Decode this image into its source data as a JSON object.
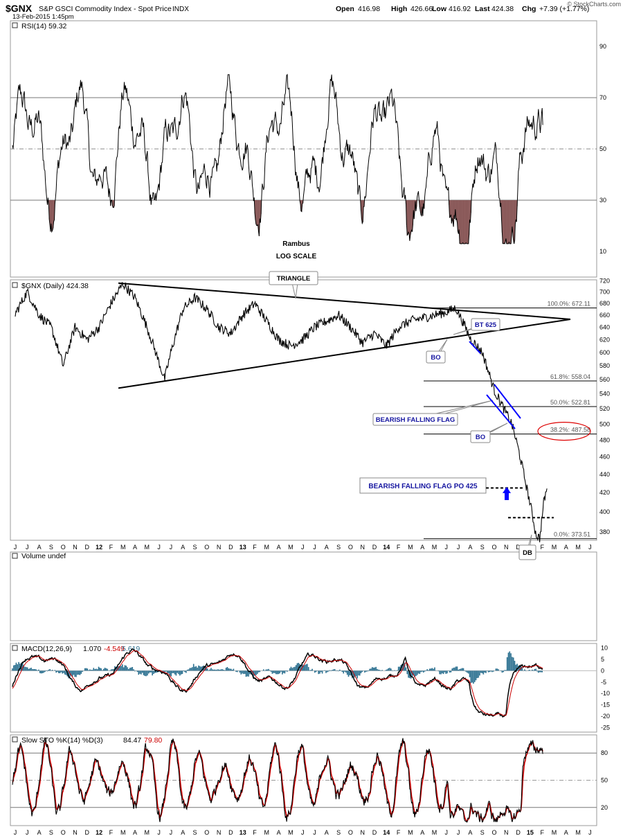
{
  "header": {
    "symbol": "$GNX",
    "name": "S&P GSCI Commodity Index - Spot Price",
    "exchange": "INDX",
    "datetime": "13-Feb-2015 1:45pm",
    "open_label": "Open",
    "open": "416.98",
    "high_label": "High",
    "high": "426.66",
    "low_label": "Low",
    "low": "416.92",
    "last_label": "Last",
    "last": "424.38",
    "chg_label": "Chg",
    "chg": "+7.39 (+1.77%)",
    "watermark": "© StockCharts.com"
  },
  "chart_data": [
    {
      "id": "rsi",
      "type": "line",
      "label": "RSI(14) 59.32",
      "ylim": [
        0,
        100
      ],
      "yticks": [
        10,
        30,
        50,
        70,
        90
      ],
      "reference_lines": [
        30,
        50,
        70
      ],
      "oversold_fill_color": "#8b5a5a",
      "line_color": "#000000",
      "annotations": [
        "Rambus",
        "LOG SCALE"
      ]
    },
    {
      "id": "price",
      "type": "line",
      "label": "$GNX (Daily) 424.38",
      "scale": "log",
      "ylim": [
        372,
        722
      ],
      "yticks": [
        380,
        400,
        420,
        440,
        460,
        480,
        500,
        520,
        540,
        560,
        580,
        600,
        620,
        640,
        660,
        680,
        700,
        720
      ],
      "fib_levels": [
        {
          "label": "100.0%: 672.11",
          "value": 672.11
        },
        {
          "label": "61.8%: 558.04",
          "value": 558.04
        },
        {
          "label": "50.0%: 522.81",
          "value": 522.81
        },
        {
          "label": "38.2%: 487.58",
          "value": 487.58,
          "highlight": true
        },
        {
          "label": "0.0%: 373.51",
          "value": 373.51
        }
      ],
      "annotations": {
        "triangle": "TRIANGLE",
        "bt": "BT 625",
        "bo1": "BO",
        "flag": "BEARISH FALLING FLAG",
        "bo2": "BO",
        "po": "BEARISH FALLING FLAG PO 425",
        "db": "DB"
      },
      "trend_colors": {
        "triangle": "#000000",
        "flag": "#0000ff",
        "label_text": "#1515a0"
      },
      "approx_path": [
        [
          "2011-06-01",
          662
        ],
        [
          "2011-07-01",
          700
        ],
        [
          "2011-08-01",
          660
        ],
        [
          "2011-09-01",
          640
        ],
        [
          "2011-10-01",
          580
        ],
        [
          "2011-11-01",
          640
        ],
        [
          "2011-12-01",
          620
        ],
        [
          "2012-01-01",
          640
        ],
        [
          "2012-02-01",
          680
        ],
        [
          "2012-03-01",
          715
        ],
        [
          "2012-04-01",
          690
        ],
        [
          "2012-05-01",
          640
        ],
        [
          "2012-06-15",
          560
        ],
        [
          "2012-07-01",
          600
        ],
        [
          "2012-08-01",
          670
        ],
        [
          "2012-09-01",
          690
        ],
        [
          "2012-10-01",
          670
        ],
        [
          "2012-11-01",
          640
        ],
        [
          "2012-12-01",
          630
        ],
        [
          "2013-01-01",
          660
        ],
        [
          "2013-02-01",
          680
        ],
        [
          "2013-03-01",
          650
        ],
        [
          "2013-04-01",
          620
        ],
        [
          "2013-05-01",
          610
        ],
        [
          "2013-06-01",
          620
        ],
        [
          "2013-07-01",
          640
        ],
        [
          "2013-08-01",
          650
        ],
        [
          "2013-09-01",
          660
        ],
        [
          "2013-10-01",
          640
        ],
        [
          "2013-11-01",
          615
        ],
        [
          "2013-12-01",
          630
        ],
        [
          "2014-01-01",
          610
        ],
        [
          "2014-02-01",
          640
        ],
        [
          "2014-03-01",
          650
        ],
        [
          "2014-04-01",
          655
        ],
        [
          "2014-05-01",
          660
        ],
        [
          "2014-06-01",
          665
        ],
        [
          "2014-06-25",
          672
        ],
        [
          "2014-07-15",
          645
        ],
        [
          "2014-08-01",
          622
        ],
        [
          "2014-09-01",
          600
        ],
        [
          "2014-10-01",
          545
        ],
        [
          "2014-10-25",
          520
        ],
        [
          "2014-11-15",
          500
        ],
        [
          "2014-12-01",
          470
        ],
        [
          "2014-12-20",
          430
        ],
        [
          "2015-01-05",
          400
        ],
        [
          "2015-01-15",
          378
        ],
        [
          "2015-01-25",
          373.5
        ],
        [
          "2015-02-05",
          410
        ],
        [
          "2015-02-13",
          424.38
        ]
      ]
    },
    {
      "id": "volume",
      "type": "bar",
      "label": "Volume undef"
    },
    {
      "id": "macd",
      "type": "line",
      "label_name": "MACD(12,26,9)",
      "values": {
        "macd": "1.070",
        "signal": "-4.549",
        "histogram": "5.619"
      },
      "ylim": [
        -27,
        12
      ],
      "yticks": [
        10,
        5,
        0,
        -5,
        -10,
        -15,
        -20,
        -25
      ],
      "colors": {
        "macd": "#000000",
        "signal": "#cc0000",
        "histogram": "#2a6f8f"
      }
    },
    {
      "id": "stoch",
      "type": "line",
      "label_name": "Slow STO %K(14) %D(3)",
      "values": {
        "k": "84.47",
        "d": "79.80"
      },
      "ylim": [
        0,
        100
      ],
      "yticks": [
        20,
        50,
        80
      ],
      "colors": {
        "k": "#000000",
        "d": "#cc0000"
      }
    }
  ],
  "x_axis": {
    "labels": [
      "J",
      "J",
      "A",
      "S",
      "O",
      "N",
      "D",
      "12",
      "F",
      "M",
      "A",
      "M",
      "J",
      "J",
      "A",
      "S",
      "O",
      "N",
      "D",
      "13",
      "F",
      "M",
      "A",
      "M",
      "J",
      "J",
      "A",
      "S",
      "O",
      "N",
      "D",
      "14",
      "F",
      "M",
      "A",
      "M",
      "J",
      "J",
      "A",
      "S",
      "O",
      "N",
      "D",
      "15",
      "F",
      "M",
      "A",
      "M",
      "J"
    ],
    "start_month": "2011-06",
    "bold_years": [
      "12",
      "13",
      "14",
      "15"
    ]
  }
}
